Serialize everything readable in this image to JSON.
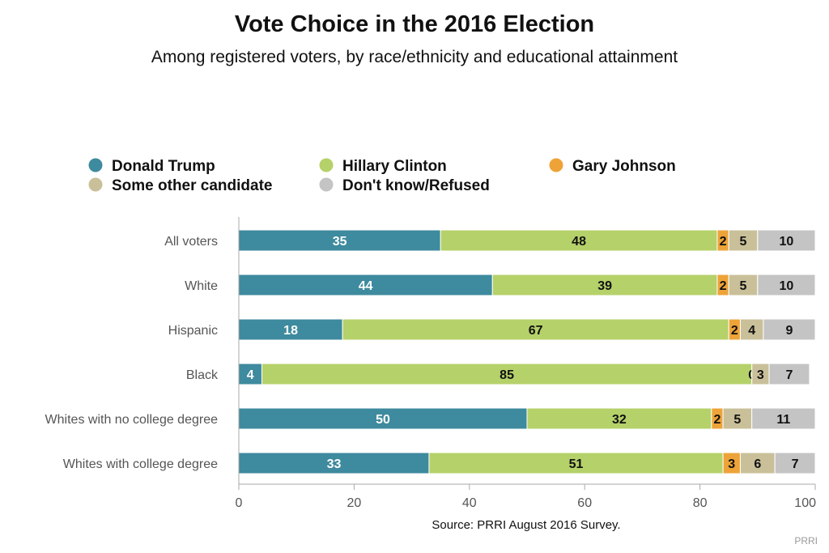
{
  "chart_data": {
    "type": "bar",
    "orientation": "horizontal",
    "stacked": true,
    "title": "Vote Choice in the 2016 Election",
    "subtitle": "Among registered voters, by race/ethnicity and educational attainment",
    "categories": [
      "All voters",
      "White",
      "Hispanic",
      "Black",
      "Whites with no college degree",
      "Whites with college degree"
    ],
    "series": [
      {
        "name": "Donald Trump",
        "color": "#3e8a9e",
        "label_color": "#ffffff",
        "values": [
          35,
          44,
          18,
          4,
          50,
          33
        ]
      },
      {
        "name": "Hillary Clinton",
        "color": "#b5d16a",
        "label_color": "#111111",
        "values": [
          48,
          39,
          67,
          85,
          32,
          51
        ]
      },
      {
        "name": "Gary Johnson",
        "color": "#eea338",
        "label_color": "#111111",
        "values": [
          2,
          2,
          2,
          0,
          2,
          3
        ]
      },
      {
        "name": "Some other candidate",
        "color": "#c9c09a",
        "label_color": "#111111",
        "values": [
          5,
          5,
          4,
          3,
          5,
          6
        ]
      },
      {
        "name": "Don't know/Refused",
        "color": "#c4c4c4",
        "label_color": "#111111",
        "values": [
          10,
          10,
          9,
          7,
          11,
          7
        ]
      }
    ],
    "xlim": [
      0,
      100
    ],
    "xticks": [
      0,
      20,
      40,
      60,
      80,
      100
    ],
    "xlabel": "",
    "ylabel": "",
    "legend_position": "top",
    "grid": false,
    "source": "Source: PRRI August 2016 Survey.",
    "credit": "PRRI"
  }
}
